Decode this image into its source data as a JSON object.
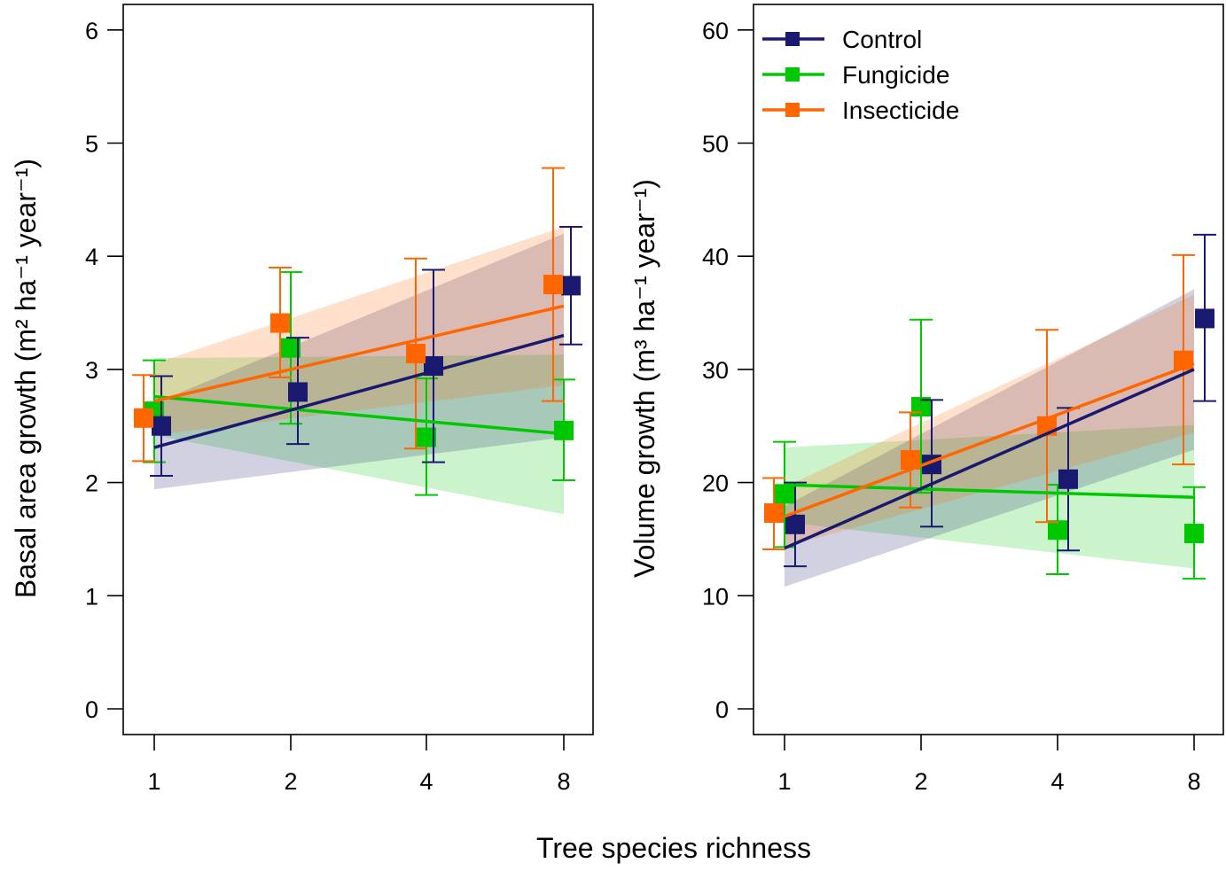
{
  "figure": {
    "xlabel": "Tree species richness"
  },
  "legend": {
    "entries": [
      {
        "name": "Control",
        "color": "#191970"
      },
      {
        "name": "Fungicide",
        "color": "#00C800"
      },
      {
        "name": "Insecticide",
        "color": "#FF6600"
      }
    ]
  },
  "chart_data": [
    {
      "type": "line",
      "ylabel": "Basal area growth (m² ha⁻¹ year⁻¹)",
      "ylim": [
        0,
        6
      ],
      "yticks": [
        0,
        1,
        2,
        3,
        4,
        5,
        6
      ],
      "x": [
        1,
        2,
        4,
        8
      ],
      "xscale": "log",
      "xticks": [
        "1",
        "2",
        "4",
        "8"
      ],
      "series": [
        {
          "name": "Control",
          "color": "#191970",
          "means": [
            2.5,
            2.8,
            3.03,
            3.74
          ],
          "err_low": [
            2.06,
            2.34,
            2.18,
            3.22
          ],
          "err_high": [
            2.94,
            3.28,
            3.88,
            4.26
          ],
          "fit": [
            2.31,
            3.3
          ],
          "band_low": [
            1.94,
            2.4
          ],
          "band_high": [
            2.7,
            4.2
          ]
        },
        {
          "name": "Fungicide",
          "color": "#00C800",
          "means": [
            2.63,
            3.19,
            2.4,
            2.46
          ],
          "err_low": [
            2.18,
            2.52,
            1.89,
            2.02
          ],
          "err_high": [
            3.08,
            3.86,
            2.92,
            2.91
          ],
          "fit": [
            2.76,
            2.43
          ],
          "band_low": [
            2.42,
            1.72
          ],
          "band_high": [
            3.1,
            3.13
          ]
        },
        {
          "name": "Insecticide",
          "color": "#FF6600",
          "means": [
            2.57,
            3.41,
            3.14,
            3.75
          ],
          "err_low": [
            2.19,
            2.93,
            2.3,
            2.72
          ],
          "err_high": [
            2.95,
            3.9,
            3.98,
            4.78
          ],
          "fit": [
            2.72,
            3.56
          ],
          "band_low": [
            2.42,
            2.86
          ],
          "band_high": [
            3.05,
            4.26
          ]
        }
      ]
    },
    {
      "type": "line",
      "ylabel": "Volume growth (m³ ha⁻¹ year⁻¹)",
      "ylim": [
        0,
        60
      ],
      "yticks": [
        0,
        10,
        20,
        30,
        40,
        50,
        60
      ],
      "x": [
        1,
        2,
        4,
        8
      ],
      "xscale": "log",
      "xticks": [
        "1",
        "2",
        "4",
        "8"
      ],
      "legend_position": "top-left",
      "series": [
        {
          "name": "Control",
          "color": "#191970",
          "means": [
            16.3,
            21.6,
            20.3,
            34.5
          ],
          "err_low": [
            12.6,
            16.1,
            14.0,
            27.2
          ],
          "err_high": [
            20.0,
            27.3,
            26.6,
            41.9
          ],
          "fit": [
            14.2,
            30.0
          ],
          "band_low": [
            10.8,
            22.9
          ],
          "band_high": [
            17.9,
            37.1
          ]
        },
        {
          "name": "Fungicide",
          "color": "#00C800",
          "means": [
            19.0,
            26.7,
            15.8,
            15.5
          ],
          "err_low": [
            14.3,
            19.1,
            11.9,
            11.5
          ],
          "err_high": [
            23.6,
            34.4,
            19.8,
            19.6
          ],
          "fit": [
            19.8,
            18.7
          ],
          "band_low": [
            16.5,
            12.4
          ],
          "band_high": [
            23.1,
            25.1
          ]
        },
        {
          "name": "Insecticide",
          "color": "#FF6600",
          "means": [
            17.3,
            22.0,
            25.0,
            30.8
          ],
          "err_low": [
            14.1,
            17.8,
            16.5,
            21.6
          ],
          "err_high": [
            20.4,
            26.2,
            33.5,
            40.1
          ],
          "fit": [
            17.0,
            30.5
          ],
          "band_low": [
            14.3,
            24.4
          ],
          "band_high": [
            19.6,
            36.6
          ]
        }
      ]
    }
  ]
}
